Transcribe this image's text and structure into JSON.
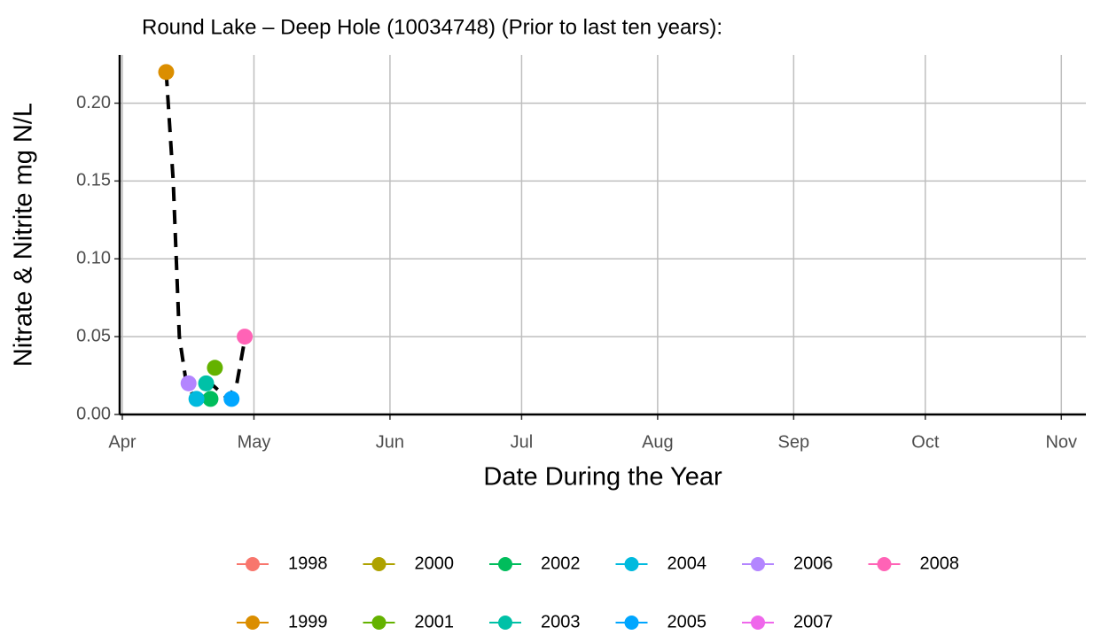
{
  "chart_data": {
    "type": "scatter",
    "title": "Round Lake – Deep Hole (10034748)  (Prior to last ten years):",
    "x_label": "Date During the Year",
    "y_label": "Nitrate & Nitrite mg N/L",
    "xlim": [
      90.4,
      310.6
    ],
    "xticks": [
      {
        "value": 91,
        "label": "Apr"
      },
      {
        "value": 121,
        "label": "May"
      },
      {
        "value": 152,
        "label": "Jun"
      },
      {
        "value": 182,
        "label": "Jul"
      },
      {
        "value": 213,
        "label": "Aug"
      },
      {
        "value": 244,
        "label": "Sep"
      },
      {
        "value": 274,
        "label": "Oct"
      },
      {
        "value": 305,
        "label": "Nov"
      }
    ],
    "ylim": [
      0,
      0.231
    ],
    "yticks": [
      {
        "value": 0,
        "label": "0.00"
      },
      {
        "value": 0.05,
        "label": "0.05"
      },
      {
        "value": 0.1,
        "label": "0.10"
      },
      {
        "value": 0.15,
        "label": "0.15"
      },
      {
        "value": 0.2,
        "label": "0.20"
      }
    ],
    "grid": true,
    "series": [
      {
        "name": "1998",
        "color": "#F8766D",
        "x": [],
        "values": []
      },
      {
        "name": "1999",
        "color": "#DB8E00",
        "x": [
          101
        ],
        "values": [
          0.22
        ]
      },
      {
        "name": "2000",
        "color": "#AEA200",
        "x": [],
        "values": []
      },
      {
        "name": "2001",
        "color": "#64B200",
        "x": [
          112.1
        ],
        "values": [
          0.03
        ]
      },
      {
        "name": "2002",
        "color": "#00BD5C",
        "x": [
          111.1
        ],
        "values": [
          0.01
        ]
      },
      {
        "name": "2003",
        "color": "#00C1A7",
        "x": [
          110.1
        ],
        "values": [
          0.02
        ]
      },
      {
        "name": "2004",
        "color": "#00BADE",
        "x": [
          107.9
        ],
        "values": [
          0.01
        ]
      },
      {
        "name": "2005",
        "color": "#00A6FF",
        "x": [
          115.9
        ],
        "values": [
          0.01
        ]
      },
      {
        "name": "2006",
        "color": "#B385FF",
        "x": [
          106.1
        ],
        "values": [
          0.02
        ]
      },
      {
        "name": "2007",
        "color": "#EF67EB",
        "x": [],
        "values": []
      },
      {
        "name": "2008",
        "color": "#FF63B6",
        "x": [
          118.9
        ],
        "values": [
          0.05
        ]
      }
    ],
    "trend": {
      "color": "#000000",
      "x": [
        101,
        102.6,
        104,
        105.6,
        107.2,
        109,
        111.1,
        113.1,
        115.1,
        117.1,
        118.7
      ],
      "values": [
        0.22,
        0.15,
        0.05,
        0.02,
        0.012,
        0.012,
        0.02,
        0.015,
        0.01,
        0.02,
        0.045
      ]
    }
  }
}
